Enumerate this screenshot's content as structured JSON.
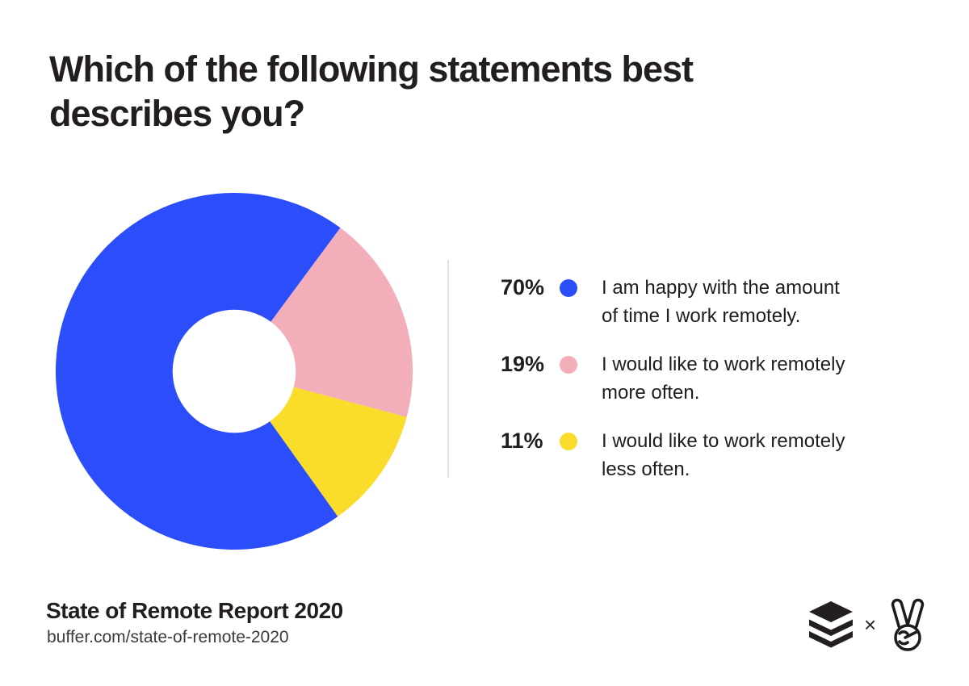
{
  "page": {
    "title_lines": [
      "Which of the following statements best",
      "describes you?"
    ],
    "background": "#ffffff"
  },
  "chart_data": {
    "type": "pie",
    "donut": true,
    "title": "Which of the following statements best describes you?",
    "start_angle_deg": 144.5,
    "inner_radius_ratio": 0.345,
    "legend_position": "right",
    "unit": "%",
    "slices": [
      {
        "label": "I am happy with the amount of time I work remotely.",
        "value": 70,
        "color": "#2b4dfa"
      },
      {
        "label": "I would like to work remotely more often.",
        "value": 19,
        "color": "#f2aeb9"
      },
      {
        "label": "I would like to work remotely less often.",
        "value": 11,
        "color": "#fadc2a"
      }
    ]
  },
  "legend": {
    "items": [
      {
        "percent": "70%",
        "color": "#2b4dfa",
        "label_lines": [
          "I am happy with the amount",
          "of time I work remotely."
        ]
      },
      {
        "percent": "19%",
        "color": "#f2aeb9",
        "label_lines": [
          "I would like to work remotely",
          "more often."
        ]
      },
      {
        "percent": "11%",
        "color": "#fadc2a",
        "label_lines": [
          "I would like to work remotely",
          "less often."
        ]
      }
    ]
  },
  "footer": {
    "report_title": "State of Remote Report 2020",
    "url": "buffer.com/state-of-remote-2020",
    "separator": "×",
    "logo_left": "buffer-layers-logo",
    "logo_right": "victory-hand-logo",
    "logo_color": "#231f20"
  }
}
